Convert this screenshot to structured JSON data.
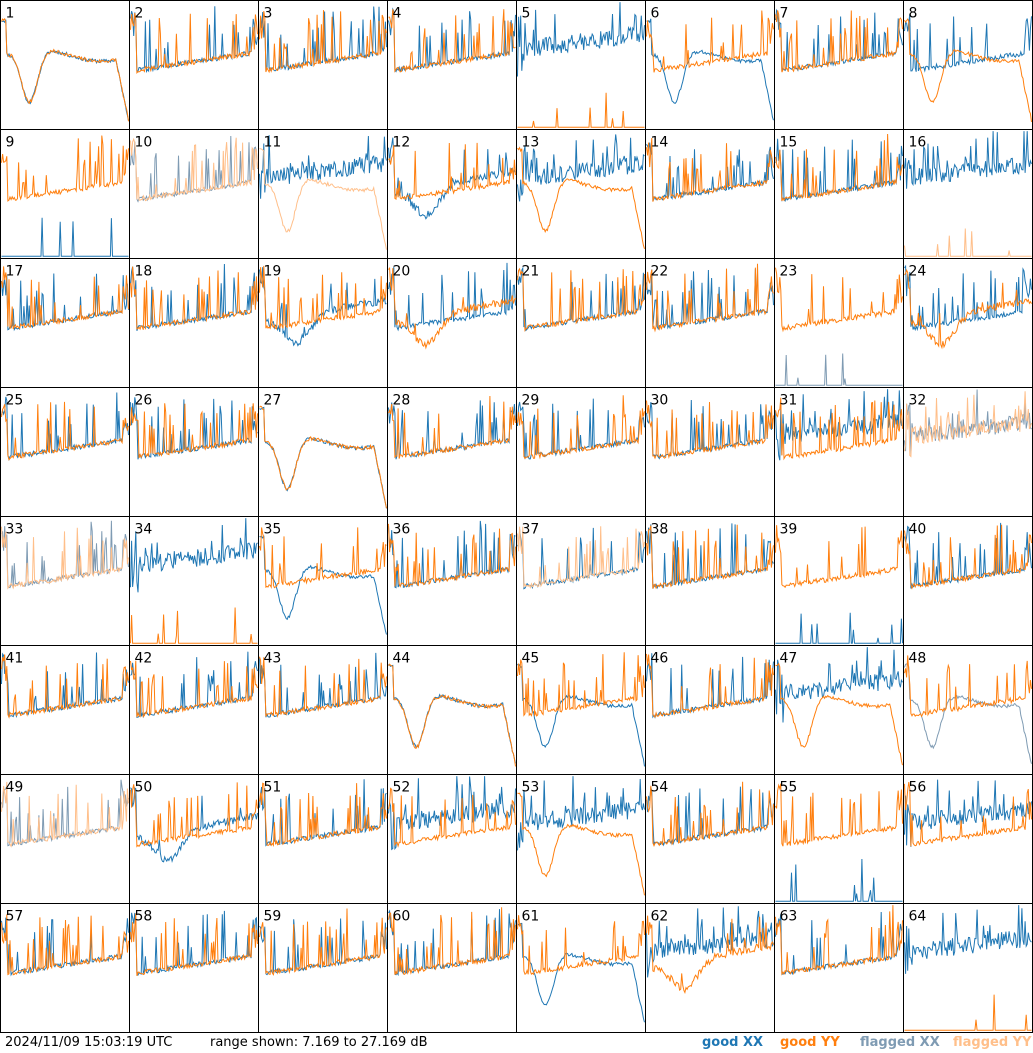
{
  "footer": {
    "timestamp": "2024/11/09 15:03:19 UTC",
    "range": "range shown: 7.169 to 27.169 dB",
    "legend": {
      "good_xx": "good XX",
      "good_yy": "good YY",
      "flagged_xx": "flagged XX",
      "flagged_yy": "flagged YY"
    }
  },
  "colors": {
    "good_xx": "#1f77b4",
    "good_yy": "#ff7f0e",
    "flagged_xx": "#7f9bb3",
    "flagged_yy": "#ffbf8a"
  },
  "chart_data": {
    "type": "line",
    "grid": {
      "rows": 8,
      "cols": 8
    },
    "ylim_db": [
      7.169,
      27.169
    ],
    "panels": [
      {
        "id": "1",
        "xx": "bowl",
        "yy": "bowl",
        "xx_flag": false,
        "yy_flag": false
      },
      {
        "id": "2",
        "xx": "typical",
        "yy": "typical",
        "xx_flag": false,
        "yy_flag": false
      },
      {
        "id": "3",
        "xx": "typical",
        "yy": "typical",
        "xx_flag": false,
        "yy_flag": false
      },
      {
        "id": "4",
        "xx": "typical",
        "yy": "typical",
        "xx_flag": false,
        "yy_flag": false
      },
      {
        "id": "5",
        "xx": "noisy",
        "yy": "spikes",
        "xx_flag": false,
        "yy_flag": false
      },
      {
        "id": "6",
        "xx": "bowl",
        "yy": "typical",
        "xx_flag": false,
        "yy_flag": false
      },
      {
        "id": "7",
        "xx": "typical",
        "yy": "typical",
        "xx_flag": false,
        "yy_flag": false
      },
      {
        "id": "8",
        "xx": "typical",
        "yy": "bowl",
        "xx_flag": false,
        "yy_flag": false
      },
      {
        "id": "9",
        "xx": "spikes",
        "yy": "typical",
        "xx_flag": false,
        "yy_flag": false
      },
      {
        "id": "10",
        "xx": "typical",
        "yy": "typical",
        "xx_flag": true,
        "yy_flag": true
      },
      {
        "id": "11",
        "xx": "noisy",
        "yy": "bowl",
        "xx_flag": false,
        "yy_flag": true
      },
      {
        "id": "12",
        "xx": "dip",
        "yy": "typical",
        "xx_flag": false,
        "yy_flag": false
      },
      {
        "id": "13",
        "xx": "noisy",
        "yy": "bowl",
        "xx_flag": false,
        "yy_flag": false
      },
      {
        "id": "14",
        "xx": "typical",
        "yy": "typical",
        "xx_flag": false,
        "yy_flag": false
      },
      {
        "id": "15",
        "xx": "typical",
        "yy": "typical",
        "xx_flag": false,
        "yy_flag": false
      },
      {
        "id": "16",
        "xx": "noisy",
        "yy": "spikes",
        "xx_flag": false,
        "yy_flag": true
      },
      {
        "id": "17",
        "xx": "typical",
        "yy": "typical",
        "xx_flag": false,
        "yy_flag": false
      },
      {
        "id": "18",
        "xx": "typical",
        "yy": "typical",
        "xx_flag": false,
        "yy_flag": false
      },
      {
        "id": "19",
        "xx": "dip",
        "yy": "typical",
        "xx_flag": false,
        "yy_flag": false
      },
      {
        "id": "20",
        "xx": "typical",
        "yy": "dip",
        "xx_flag": false,
        "yy_flag": false
      },
      {
        "id": "21",
        "xx": "typical",
        "yy": "typical",
        "xx_flag": false,
        "yy_flag": false
      },
      {
        "id": "22",
        "xx": "typical",
        "yy": "typical",
        "xx_flag": false,
        "yy_flag": false
      },
      {
        "id": "23",
        "xx": "spikes",
        "yy": "typical",
        "xx_flag": true,
        "yy_flag": false
      },
      {
        "id": "24",
        "xx": "typical",
        "yy": "dip",
        "xx_flag": false,
        "yy_flag": false
      },
      {
        "id": "25",
        "xx": "typical",
        "yy": "typical",
        "xx_flag": false,
        "yy_flag": false
      },
      {
        "id": "26",
        "xx": "typical",
        "yy": "typical",
        "xx_flag": false,
        "yy_flag": false
      },
      {
        "id": "27",
        "xx": "bowl",
        "yy": "bowl",
        "xx_flag": false,
        "yy_flag": false
      },
      {
        "id": "28",
        "xx": "typical",
        "yy": "typical",
        "xx_flag": false,
        "yy_flag": false
      },
      {
        "id": "29",
        "xx": "typical",
        "yy": "typical",
        "xx_flag": false,
        "yy_flag": false
      },
      {
        "id": "30",
        "xx": "typical",
        "yy": "typical",
        "xx_flag": false,
        "yy_flag": false
      },
      {
        "id": "31",
        "xx": "noisy",
        "yy": "typical",
        "xx_flag": false,
        "yy_flag": false
      },
      {
        "id": "32",
        "xx": "noisy",
        "yy": "noisy",
        "xx_flag": true,
        "yy_flag": true
      },
      {
        "id": "33",
        "xx": "typical",
        "yy": "typical",
        "xx_flag": true,
        "yy_flag": true
      },
      {
        "id": "34",
        "xx": "noisy",
        "yy": "spikes",
        "xx_flag": false,
        "yy_flag": false
      },
      {
        "id": "35",
        "xx": "bowl",
        "yy": "typical",
        "xx_flag": false,
        "yy_flag": false
      },
      {
        "id": "36",
        "xx": "typical",
        "yy": "typical",
        "xx_flag": false,
        "yy_flag": false
      },
      {
        "id": "37",
        "xx": "typical",
        "yy": "typical",
        "xx_flag": false,
        "yy_flag": true
      },
      {
        "id": "38",
        "xx": "typical",
        "yy": "typical",
        "xx_flag": false,
        "yy_flag": false
      },
      {
        "id": "39",
        "xx": "spikes",
        "yy": "typical",
        "xx_flag": false,
        "yy_flag": false
      },
      {
        "id": "40",
        "xx": "typical",
        "yy": "typical",
        "xx_flag": false,
        "yy_flag": false
      },
      {
        "id": "41",
        "xx": "typical",
        "yy": "typical",
        "xx_flag": false,
        "yy_flag": false
      },
      {
        "id": "42",
        "xx": "typical",
        "yy": "typical",
        "xx_flag": false,
        "yy_flag": false
      },
      {
        "id": "43",
        "xx": "typical",
        "yy": "typical",
        "xx_flag": false,
        "yy_flag": false
      },
      {
        "id": "44",
        "xx": "bowl",
        "yy": "bowl",
        "xx_flag": false,
        "yy_flag": false
      },
      {
        "id": "45",
        "xx": "bowl",
        "yy": "typical",
        "xx_flag": false,
        "yy_flag": false
      },
      {
        "id": "46",
        "xx": "typical",
        "yy": "typical",
        "xx_flag": false,
        "yy_flag": false
      },
      {
        "id": "47",
        "xx": "noisy",
        "yy": "bowl",
        "xx_flag": false,
        "yy_flag": false
      },
      {
        "id": "48",
        "xx": "bowl",
        "yy": "typical",
        "xx_flag": true,
        "yy_flag": false
      },
      {
        "id": "49",
        "xx": "typical",
        "yy": "typical",
        "xx_flag": true,
        "yy_flag": true
      },
      {
        "id": "50",
        "xx": "dip",
        "yy": "typical",
        "xx_flag": false,
        "yy_flag": false
      },
      {
        "id": "51",
        "xx": "typical",
        "yy": "typical",
        "xx_flag": false,
        "yy_flag": false
      },
      {
        "id": "52",
        "xx": "noisy",
        "yy": "typical",
        "xx_flag": false,
        "yy_flag": false
      },
      {
        "id": "53",
        "xx": "noisy",
        "yy": "bowl",
        "xx_flag": false,
        "yy_flag": false
      },
      {
        "id": "54",
        "xx": "typical",
        "yy": "typical",
        "xx_flag": false,
        "yy_flag": false
      },
      {
        "id": "55",
        "xx": "spikes",
        "yy": "typical",
        "xx_flag": false,
        "yy_flag": false
      },
      {
        "id": "56",
        "xx": "noisy",
        "yy": "typical",
        "xx_flag": false,
        "yy_flag": false
      },
      {
        "id": "57",
        "xx": "typical",
        "yy": "typical",
        "xx_flag": false,
        "yy_flag": false
      },
      {
        "id": "58",
        "xx": "typical",
        "yy": "typical",
        "xx_flag": false,
        "yy_flag": false
      },
      {
        "id": "59",
        "xx": "typical",
        "yy": "typical",
        "xx_flag": false,
        "yy_flag": false
      },
      {
        "id": "60",
        "xx": "typical",
        "yy": "typical",
        "xx_flag": false,
        "yy_flag": false
      },
      {
        "id": "61",
        "xx": "bowl",
        "yy": "typical",
        "xx_flag": false,
        "yy_flag": false
      },
      {
        "id": "62",
        "xx": "noisy",
        "yy": "dip",
        "xx_flag": false,
        "yy_flag": false
      },
      {
        "id": "63",
        "xx": "typical",
        "yy": "typical",
        "xx_flag": false,
        "yy_flag": false
      },
      {
        "id": "64",
        "xx": "noisy",
        "yy": "spikes",
        "xx_flag": false,
        "yy_flag": false
      }
    ]
  }
}
